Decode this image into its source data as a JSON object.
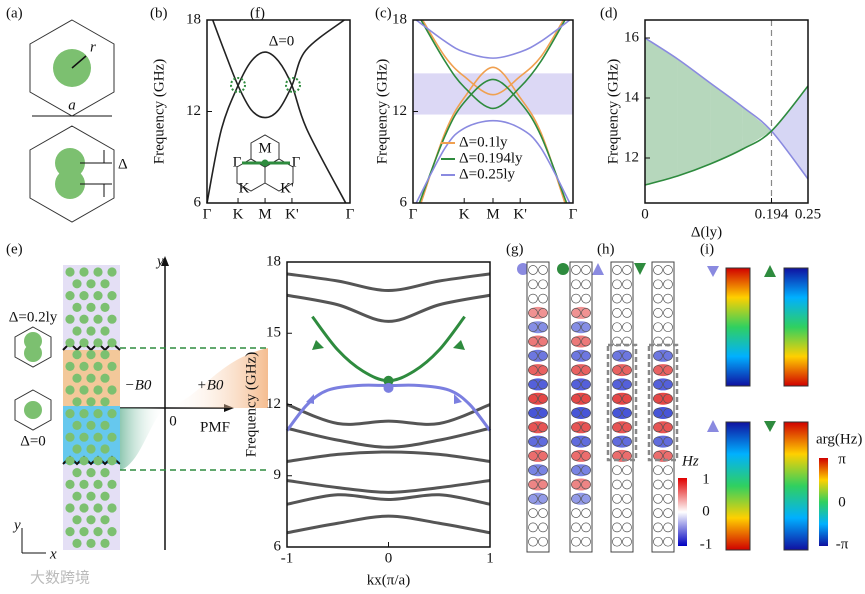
{
  "panels": {
    "a": {
      "label": "(a)",
      "r": "r",
      "a": "a",
      "delta": "Δ"
    },
    "e": {
      "label": "(e)",
      "y_axis": "y",
      "top_text": "Δ=0.2ly",
      "bottom_text": "Δ=0",
      "neg": "−B0",
      "pos": "+B0",
      "zero": "0",
      "pmf": "PMF",
      "coord_y": "y",
      "coord_x": "x"
    },
    "g": {
      "label": "(g)"
    },
    "h": {
      "label": "(h)",
      "cbar_title": "Hz",
      "cbar_max": "1",
      "cbar_mid": "0",
      "cbar_min": "-1"
    },
    "i": {
      "label": "(i)",
      "cbar_title": "arg(Hz)",
      "cbar_max": "π",
      "cbar_mid": "0",
      "cbar_min": "-π"
    },
    "watermark": "大数跨境"
  },
  "chart_data": [
    {
      "type": "line",
      "label": "(b)",
      "y_label": "Frequency (GHz)",
      "annotation": "Δ=0",
      "inset_labels": [
        "M",
        "Γ",
        "Γ",
        "K",
        "K'"
      ],
      "xlim": [
        0,
        1
      ],
      "ylim": [
        6,
        18
      ],
      "yticks": [
        6,
        12,
        18
      ],
      "xticks": [
        {
          "value": 0,
          "label": "Γ"
        },
        {
          "value": 0.217,
          "label": "K"
        },
        {
          "value": 0.406,
          "label": "M"
        },
        {
          "value": 0.594,
          "label": "K'"
        },
        {
          "value": 1,
          "label": "Γ"
        }
      ],
      "series": [
        {
          "color": "#222222",
          "x": [
            0.04,
            0.12,
            0.217,
            0.31,
            0.406,
            0.5,
            0.594,
            0.69,
            0.96
          ],
          "values": [
            18,
            16,
            13.7,
            12.1,
            11.6,
            12.1,
            13.7,
            16,
            18
          ]
        },
        {
          "color": "#222222",
          "x": [
            0,
            0.1,
            0.217,
            0.31,
            0.406,
            0.5,
            0.594,
            0.7,
            0.97
          ],
          "values": [
            6,
            10.8,
            13.7,
            15.3,
            15.9,
            15.3,
            13.7,
            10.8,
            6
          ]
        }
      ]
    },
    {
      "type": "line",
      "label": "(c)",
      "y_label": "Frequency (GHz)",
      "legend": "lower center",
      "band": [
        11.8,
        14.5
      ],
      "xlim": [
        0,
        1
      ],
      "ylim": [
        6,
        18
      ],
      "yticks": [
        6,
        12,
        18
      ],
      "xticks": [
        {
          "value": 0,
          "label": "Γ"
        },
        {
          "value": 0.32,
          "label": "K"
        },
        {
          "value": 0.5,
          "label": "M"
        },
        {
          "value": 0.67,
          "label": "K'"
        },
        {
          "value": 1,
          "label": "Γ"
        }
      ],
      "series": [
        {
          "name": "Δ=0.1ly",
          "color": "#f0a050",
          "x": [
            0.05,
            0.2,
            0.32,
            0.5,
            0.67,
            0.8,
            0.95
          ],
          "values": [
            6,
            10.6,
            12.9,
            14.9,
            12.9,
            10.6,
            6
          ]
        },
        {
          "color": "#f0a050",
          "x": [
            0.06,
            0.2,
            0.32,
            0.5,
            0.67,
            0.8,
            0.94
          ],
          "values": [
            18,
            15.6,
            14.3,
            13.1,
            14.3,
            15.6,
            18
          ]
        },
        {
          "name": "Δ=0.194ly",
          "color": "#2e8b3e",
          "x": [
            0.04,
            0.2,
            0.32,
            0.5,
            0.67,
            0.8,
            0.96
          ],
          "values": [
            6,
            10.4,
            12.6,
            14.1,
            12.6,
            10.4,
            6
          ]
        },
        {
          "color": "#2e8b3e",
          "x": [
            0.05,
            0.2,
            0.32,
            0.5,
            0.67,
            0.8,
            0.95
          ],
          "values": [
            18,
            15.3,
            13.6,
            12.2,
            13.6,
            15.3,
            18
          ]
        },
        {
          "name": "Δ=0.25ly",
          "color": "#8a8ae0",
          "x": [
            0.02,
            0.2,
            0.32,
            0.5,
            0.67,
            0.8,
            0.98
          ],
          "values": [
            6,
            9.6,
            10.9,
            11.4,
            10.9,
            9.6,
            6
          ]
        },
        {
          "color": "#8a8ae0",
          "x": [
            0.02,
            0.2,
            0.32,
            0.5,
            0.67,
            0.8,
            0.98
          ],
          "values": [
            18,
            16.6,
            15.9,
            15.5,
            15.9,
            16.6,
            18
          ]
        }
      ]
    },
    {
      "type": "line",
      "label": "(d)",
      "y_label": "Frequency (GHz)",
      "x_label": "Δ(ly)",
      "fill_between": true,
      "vline": 0.194,
      "xlim": [
        0,
        0.25
      ],
      "ylim": [
        10.5,
        16.6
      ],
      "yticks": [
        12,
        14,
        16
      ],
      "xticks": [
        0,
        0.194,
        0.25
      ],
      "series": [
        {
          "color": "#8a8ae0",
          "x": [
            0,
            0.05,
            0.1,
            0.15,
            0.194,
            0.25
          ],
          "values": [
            16,
            15.3,
            14.5,
            13.7,
            12.9,
            11.3
          ]
        },
        {
          "color": "#2e8b3e",
          "x": [
            0,
            0.05,
            0.1,
            0.15,
            0.194,
            0.25
          ],
          "values": [
            11.1,
            11.4,
            11.8,
            12.3,
            12.9,
            14.4
          ]
        }
      ]
    },
    {
      "type": "line",
      "label": "(f)",
      "y_label": "Frequency (GHz)",
      "x_label": "kx(π/a)",
      "xlim": [
        -1,
        1
      ],
      "ylim": [
        6,
        18
      ],
      "yticks": [
        6,
        9,
        12,
        15,
        18
      ],
      "xticks": [
        -1,
        0,
        1
      ],
      "series": [
        {
          "color": "#555555",
          "x": [
            -1,
            -0.5,
            0,
            0.5,
            1
          ],
          "values": [
            17.5,
            17.2,
            16.8,
            17.2,
            17.5
          ]
        },
        {
          "color": "#555555",
          "x": [
            -1,
            -0.5,
            0,
            0.5,
            1
          ],
          "values": [
            16.6,
            16.2,
            15.5,
            16.2,
            16.6
          ]
        },
        {
          "color": "#555555",
          "x": [
            -1,
            -0.5,
            0,
            0.5,
            1
          ],
          "values": [
            12.0,
            11.2,
            11.3,
            11.2,
            12.0
          ]
        },
        {
          "color": "#555555",
          "x": [
            -1,
            -0.5,
            0,
            0.5,
            1
          ],
          "values": [
            11.0,
            10.5,
            10.2,
            10.5,
            11.0
          ]
        },
        {
          "color": "#555555",
          "x": [
            -1,
            -0.5,
            0,
            0.5,
            1
          ],
          "values": [
            9.6,
            9.9,
            10.0,
            9.9,
            9.6
          ]
        },
        {
          "color": "#555555",
          "x": [
            -1,
            -0.5,
            0,
            0.5,
            1
          ],
          "values": [
            8.8,
            8.5,
            8.3,
            8.5,
            8.8
          ]
        },
        {
          "color": "#555555",
          "x": [
            -1,
            -0.5,
            0,
            0.5,
            1
          ],
          "values": [
            7.8,
            8.2,
            8.0,
            8.2,
            7.8
          ]
        },
        {
          "color": "#555555",
          "x": [
            -1,
            -0.5,
            0,
            0.5,
            1
          ],
          "values": [
            6.6,
            7.0,
            7.3,
            7.0,
            6.6
          ]
        },
        {
          "color": "#2e8b3e",
          "x": [
            -0.75,
            -0.5,
            -0.25,
            0,
            0.25,
            0.5,
            0.75
          ],
          "values": [
            15.7,
            14.3,
            13.4,
            13.0,
            13.4,
            14.3,
            15.7
          ]
        },
        {
          "color": "#7b7fe0",
          "x": [
            -1,
            -0.8,
            -0.6,
            -0.3,
            0,
            0.3,
            0.6,
            0.8,
            1
          ],
          "values": [
            10.9,
            12.0,
            12.6,
            12.8,
            12.8,
            12.8,
            12.6,
            12.0,
            10.9
          ]
        }
      ]
    }
  ]
}
